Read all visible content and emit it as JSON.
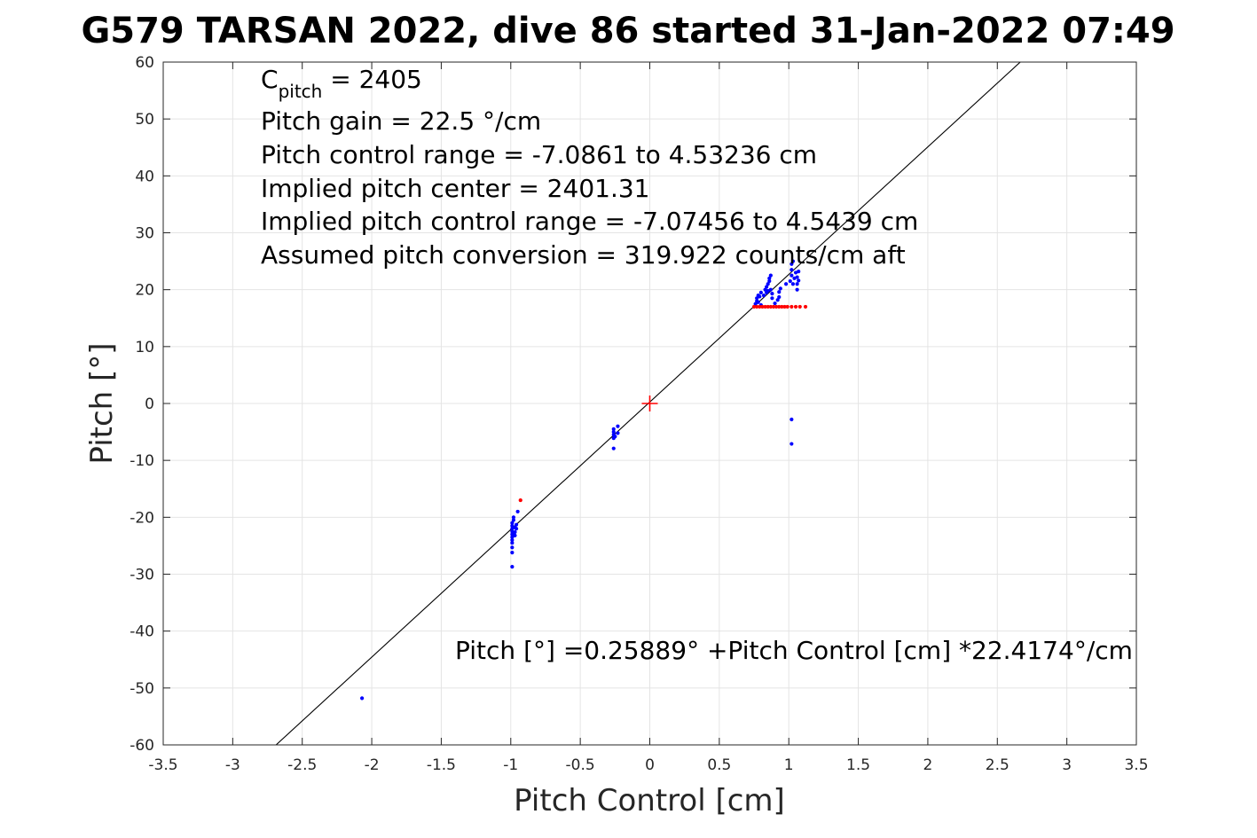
{
  "chart_data": {
    "type": "scatter",
    "title": "G579 TARSAN 2022, dive 86 started 31-Jan-2022 07:49",
    "xlabel": "Pitch Control [cm]",
    "ylabel": "Pitch [°]",
    "xlim": [
      -3.5,
      3.5
    ],
    "ylim": [
      -60,
      60
    ],
    "xticks": [
      -3.5,
      -3,
      -2.5,
      -2,
      -1.5,
      -1,
      -0.5,
      0,
      0.5,
      1,
      1.5,
      2,
      2.5,
      3,
      3.5
    ],
    "xtick_labels": [
      "-3.5",
      "-3",
      "-2.5",
      "-2",
      "-1.5",
      "-1",
      "-0.5",
      "0",
      "0.5",
      "1",
      "1.5",
      "2",
      "2.5",
      "3",
      "3.5"
    ],
    "yticks": [
      -60,
      -50,
      -40,
      -30,
      -20,
      -10,
      0,
      10,
      20,
      30,
      40,
      50,
      60
    ],
    "ytick_labels": [
      "-60",
      "-50",
      "-40",
      "-30",
      "-20",
      "-10",
      "0",
      "10",
      "20",
      "30",
      "40",
      "50",
      "60"
    ],
    "grid": true,
    "annotations": {
      "cpitch_prefix": "C",
      "cpitch_sub": "pitch",
      "cpitch_suffix": " = 2405",
      "lines": [
        "Pitch gain = 22.5 °/cm",
        "Pitch control range = -7.0861 to 4.53236 cm",
        "Implied pitch center = 2401.31",
        "Implied pitch control range = -7.07456 to 4.5439 cm",
        "Assumed pitch conversion = 319.922 counts/cm aft"
      ],
      "fit_equation": "Pitch [°] =0.25889° +Pitch Control [cm] *22.4174°/cm"
    },
    "fit_line": {
      "intercept": 0.25889,
      "slope": 22.4174,
      "color": "#000000"
    },
    "center_marker": {
      "x": 0,
      "y": 0,
      "color": "#ff0000"
    },
    "series": [
      {
        "color": "#0000ff",
        "points": [
          [
            -2.07,
            -51.8
          ],
          [
            -0.99,
            -28.7
          ],
          [
            -0.99,
            -26.2
          ],
          [
            -0.99,
            -25.3
          ],
          [
            -0.99,
            -24.5
          ],
          [
            -0.99,
            -24.0
          ],
          [
            -0.99,
            -23.5
          ],
          [
            -0.99,
            -23.0
          ],
          [
            -0.99,
            -22.5
          ],
          [
            -0.99,
            -22.0
          ],
          [
            -0.99,
            -21.5
          ],
          [
            -0.99,
            -21.0
          ],
          [
            -0.98,
            -20.5
          ],
          [
            -0.98,
            -20.0
          ],
          [
            -0.98,
            -22.8
          ],
          [
            -0.97,
            -21.8
          ],
          [
            -0.97,
            -22.6
          ],
          [
            -0.97,
            -23.2
          ],
          [
            -0.96,
            -21.3
          ],
          [
            -0.96,
            -22.0
          ],
          [
            -0.95,
            -19.0
          ],
          [
            -0.26,
            -7.9
          ],
          [
            -0.26,
            -6.1
          ],
          [
            -0.26,
            -5.5
          ],
          [
            -0.26,
            -5.0
          ],
          [
            -0.26,
            -4.5
          ],
          [
            -0.25,
            -5.8
          ],
          [
            -0.23,
            -4.0
          ],
          [
            -0.23,
            -5.2
          ],
          [
            0.76,
            17.5
          ],
          [
            0.77,
            18.0
          ],
          [
            0.77,
            18.5
          ],
          [
            0.78,
            19.0
          ],
          [
            0.78,
            17.8
          ],
          [
            0.79,
            18.8
          ],
          [
            0.8,
            19.5
          ],
          [
            0.8,
            17.3
          ],
          [
            0.82,
            19.0
          ],
          [
            0.83,
            20.0
          ],
          [
            0.84,
            19.5
          ],
          [
            0.84,
            20.5
          ],
          [
            0.85,
            21.0
          ],
          [
            0.85,
            19.8
          ],
          [
            0.86,
            21.5
          ],
          [
            0.86,
            22.0
          ],
          [
            0.87,
            22.5
          ],
          [
            0.87,
            20.0
          ],
          [
            0.88,
            18.5
          ],
          [
            0.88,
            19.3
          ],
          [
            0.9,
            17.6
          ],
          [
            0.92,
            18.2
          ],
          [
            0.93,
            18.7
          ],
          [
            0.93,
            19.6
          ],
          [
            0.94,
            20.2
          ],
          [
            0.98,
            21.0
          ],
          [
            1.01,
            21.5
          ],
          [
            1.02,
            22.5
          ],
          [
            1.02,
            23.5
          ],
          [
            1.02,
            24.5
          ],
          [
            1.03,
            21.0
          ],
          [
            1.03,
            25.0
          ],
          [
            1.04,
            22.0
          ],
          [
            1.05,
            23.0
          ],
          [
            1.06,
            20.0
          ],
          [
            1.06,
            21.0
          ],
          [
            1.06,
            22.2
          ],
          [
            1.07,
            23.2
          ],
          [
            1.07,
            21.6
          ],
          [
            1.02,
            -2.8
          ],
          [
            1.02,
            -7.1
          ]
        ]
      },
      {
        "color": "#ff0000",
        "points": [
          [
            -0.93,
            -17.0
          ],
          [
            0.75,
            17.0
          ],
          [
            0.77,
            17.0
          ],
          [
            0.79,
            17.0
          ],
          [
            0.81,
            17.0
          ],
          [
            0.83,
            17.0
          ],
          [
            0.85,
            17.0
          ],
          [
            0.87,
            17.0
          ],
          [
            0.89,
            17.0
          ],
          [
            0.91,
            17.0
          ],
          [
            0.93,
            17.0
          ],
          [
            0.95,
            17.0
          ],
          [
            0.97,
            17.0
          ],
          [
            0.99,
            17.0
          ],
          [
            1.02,
            17.0
          ],
          [
            1.05,
            17.0
          ],
          [
            1.08,
            17.0
          ],
          [
            1.12,
            17.0
          ]
        ]
      }
    ]
  }
}
